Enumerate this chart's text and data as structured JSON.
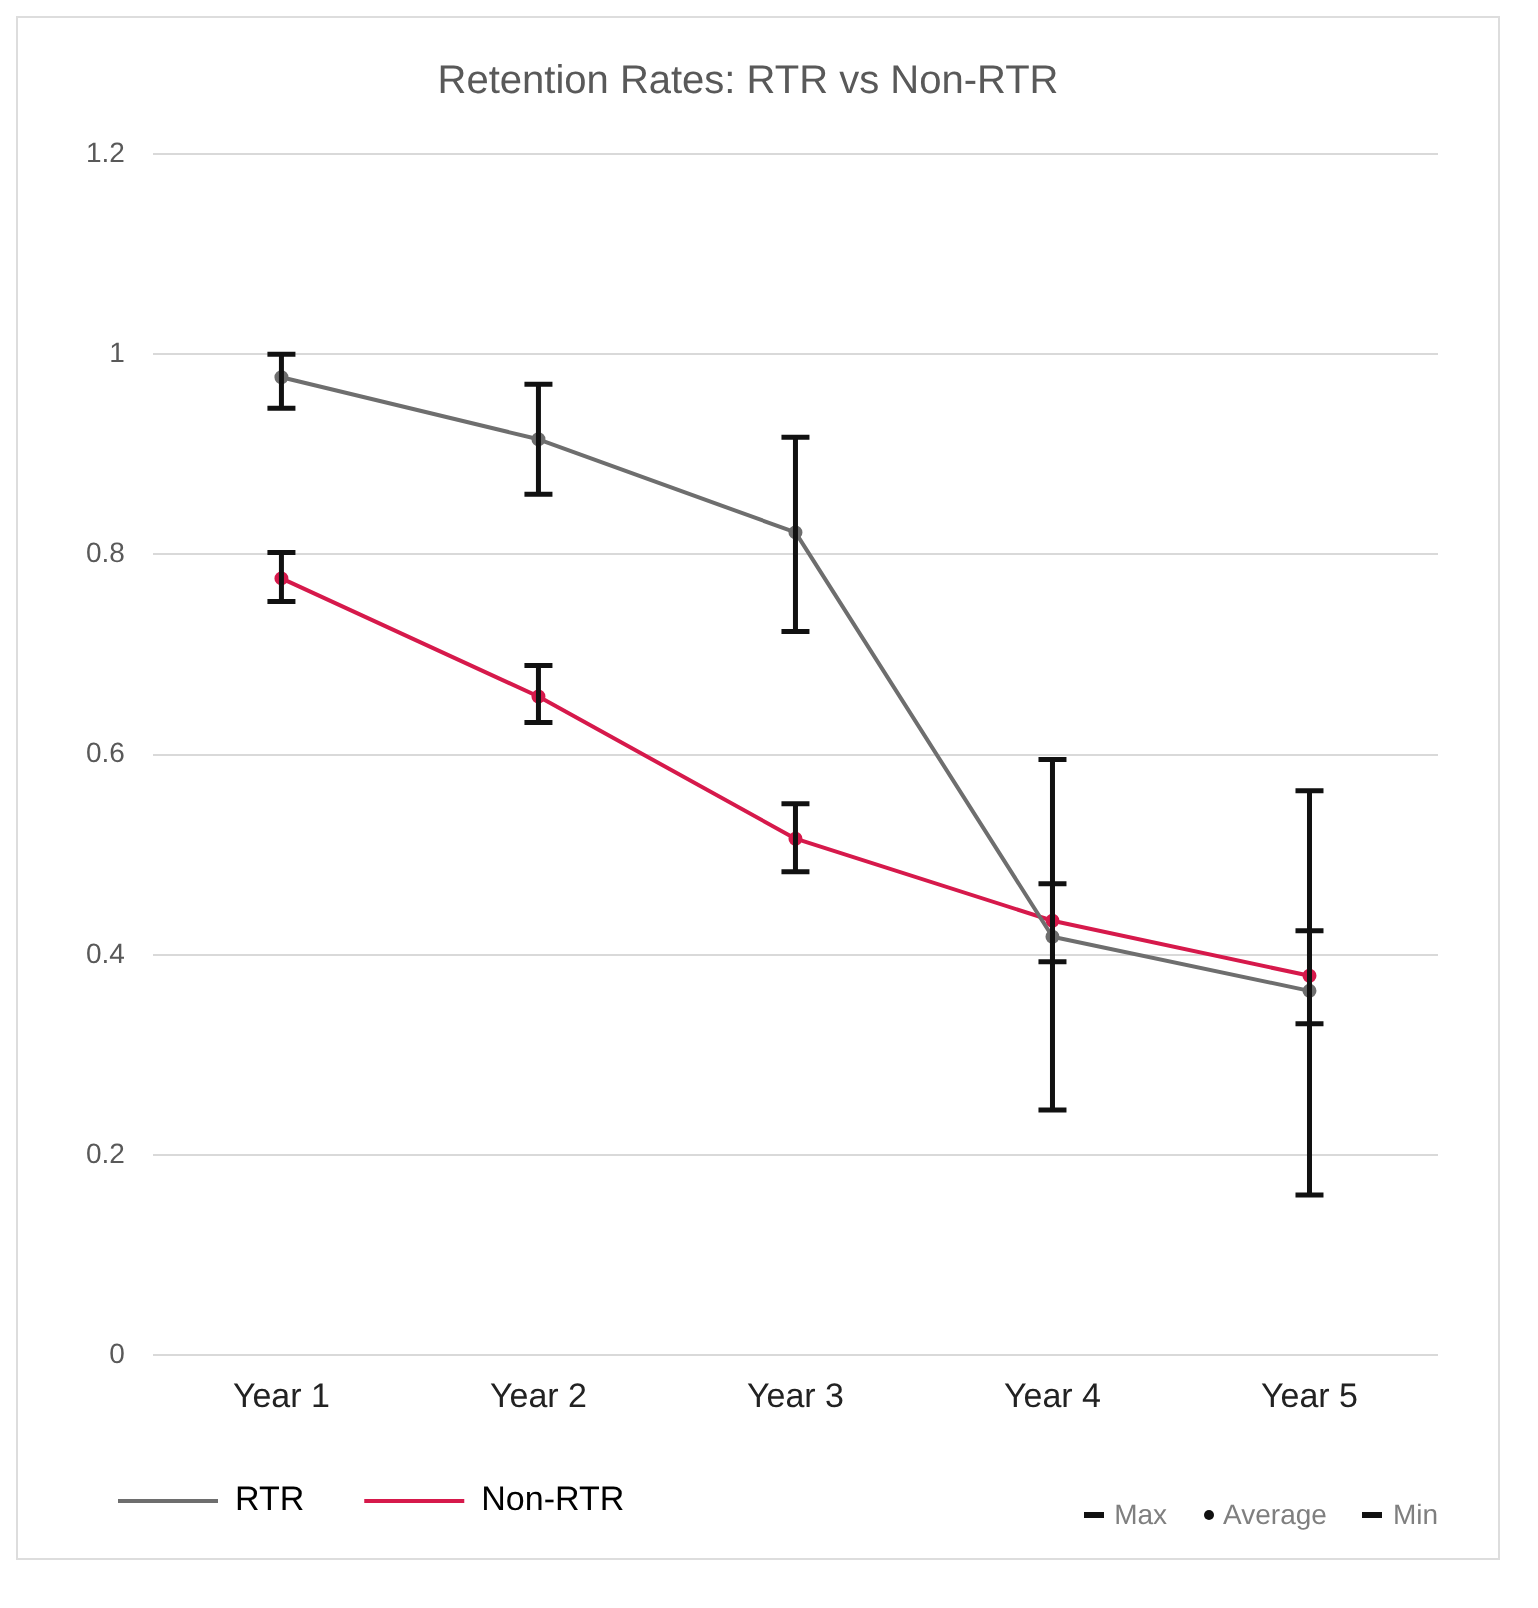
{
  "chart_data": {
    "type": "line",
    "title": "Retention Rates: RTR vs Non-RTR",
    "categories": [
      "Year 1",
      "Year 2",
      "Year 3",
      "Year 4",
      "Year 5"
    ],
    "series": [
      {
        "name": "RTR",
        "color": "#6e6e6e",
        "values": [
          0.977,
          0.915,
          0.822,
          0.418,
          0.364
        ],
        "errors": [
          [
            0.946,
            1.0
          ],
          [
            0.86,
            0.97
          ],
          [
            0.723,
            0.917
          ],
          [
            0.245,
            0.595
          ],
          [
            0.16,
            0.564
          ]
        ]
      },
      {
        "name": "Non-RTR",
        "color": "#d6194b",
        "values": [
          0.776,
          0.658,
          0.516,
          0.434,
          0.379
        ],
        "errors": [
          [
            0.753,
            0.802
          ],
          [
            0.632,
            0.689
          ],
          [
            0.483,
            0.551
          ],
          [
            0.393,
            0.471
          ],
          [
            0.331,
            0.424
          ]
        ]
      }
    ],
    "ylim": [
      0,
      1.2
    ],
    "yticks": [
      0,
      0.2,
      0.4,
      0.6,
      0.8,
      1,
      1.2
    ],
    "grid": "y",
    "legend": "bottom",
    "marker": "circle",
    "line_style": "solid",
    "annotations": [
      "Max",
      "Average",
      "Min"
    ]
  }
}
